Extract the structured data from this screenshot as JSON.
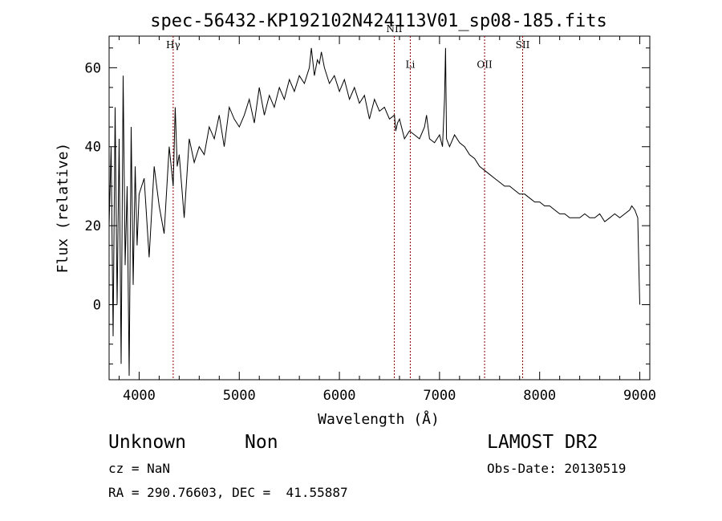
{
  "chart_data": {
    "type": "line",
    "title": "spec-56432-KP192102N424113V01_sp08-185.fits",
    "xlabel": "Wavelength (Å)",
    "ylabel": "Flux (relative)",
    "xlim": [
      3700,
      9100
    ],
    "ylim": [
      -19,
      68
    ],
    "xticks": [
      4000,
      5000,
      6000,
      7000,
      8000,
      9000
    ],
    "yticks": [
      0,
      20,
      40,
      60
    ],
    "grid": false,
    "series": [
      {
        "x": [
          3700,
          3720,
          3740,
          3760,
          3780,
          3800,
          3820,
          3840,
          3860,
          3880,
          3900,
          3920,
          3940,
          3960,
          3980,
          4000,
          4050,
          4100,
          4150,
          4200,
          4250,
          4300,
          4340,
          4360,
          4380,
          4400,
          4450,
          4500,
          4550,
          4600,
          4650,
          4700,
          4750,
          4800,
          4850,
          4900,
          4950,
          5000,
          5050,
          5100,
          5150,
          5200,
          5250,
          5300,
          5350,
          5400,
          5450,
          5500,
          5550,
          5600,
          5650,
          5700,
          5720,
          5750,
          5780,
          5800,
          5820,
          5850,
          5900,
          5950,
          6000,
          6050,
          6100,
          6150,
          6200,
          6250,
          6300,
          6350,
          6400,
          6450,
          6500,
          6550,
          6563,
          6580,
          6600,
          6650,
          6700,
          6750,
          6800,
          6850,
          6870,
          6900,
          6950,
          7000,
          7030,
          7050,
          7060,
          7070,
          7100,
          7150,
          7200,
          7250,
          7300,
          7350,
          7400,
          7450,
          7500,
          7550,
          7600,
          7650,
          7700,
          7750,
          7800,
          7850,
          7900,
          7950,
          8000,
          8050,
          8100,
          8150,
          8200,
          8250,
          8300,
          8350,
          8400,
          8450,
          8500,
          8550,
          8600,
          8650,
          8700,
          8750,
          8800,
          8850,
          8900,
          8920,
          8950,
          8980,
          8990,
          9000
        ],
        "y": [
          20,
          40,
          -8,
          50,
          0,
          42,
          -15,
          58,
          10,
          30,
          -18,
          45,
          5,
          35,
          15,
          28,
          32,
          12,
          35,
          25,
          18,
          40,
          30,
          50,
          35,
          38,
          22,
          42,
          36,
          40,
          38,
          45,
          42,
          48,
          40,
          50,
          47,
          45,
          48,
          52,
          46,
          55,
          48,
          53,
          50,
          55,
          52,
          57,
          54,
          58,
          56,
          60,
          65,
          58,
          62,
          61,
          64,
          60,
          56,
          58,
          54,
          57,
          52,
          55,
          51,
          53,
          47,
          52,
          49,
          50,
          47,
          48,
          44,
          46,
          47,
          42,
          44,
          43,
          42,
          45,
          48,
          42,
          41,
          43,
          40,
          52,
          65,
          42,
          40,
          43,
          41,
          40,
          38,
          37,
          35,
          34,
          33,
          32,
          31,
          30,
          30,
          29,
          28,
          28,
          27,
          26,
          26,
          25,
          25,
          24,
          23,
          23,
          22,
          22,
          22,
          23,
          22,
          22,
          23,
          21,
          22,
          23,
          22,
          23,
          24,
          25,
          24,
          22,
          10,
          0
        ],
        "color": "#000000"
      }
    ],
    "annotations": [
      {
        "label": "Hγ",
        "x": 4340,
        "label_y": 65
      },
      {
        "label": "NII",
        "x": 6548,
        "label_y": 69
      },
      {
        "label": "Li",
        "x": 6708,
        "label_y": 60
      },
      {
        "label": "OII",
        "x": 7450,
        "label_y": 60
      },
      {
        "label": "SII",
        "x": 7830,
        "label_y": 65
      }
    ],
    "annotation_color": "#8b0000"
  },
  "info": {
    "object_class": "Unknown",
    "object_subclass": "Non",
    "survey": "LAMOST DR2",
    "cz": "cz = NaN",
    "obs_date": "Obs-Date: 20130519",
    "coords": "RA = 290.76603, DEC =  41.55887"
  }
}
